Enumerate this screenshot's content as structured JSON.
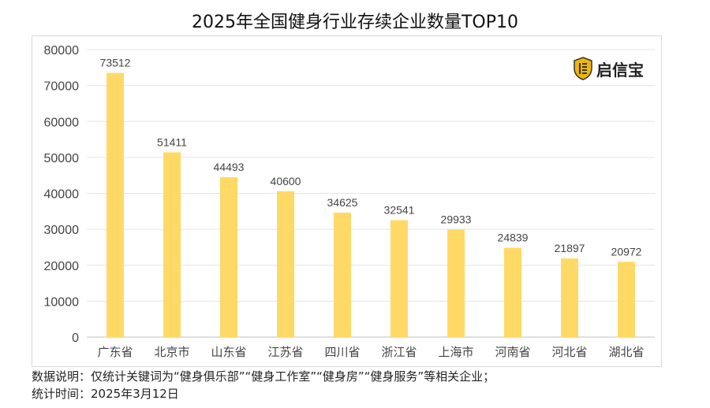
{
  "chart_data": {
    "type": "bar",
    "title": "2025年全国健身行业存续企业数量TOP10",
    "categories": [
      "广东省",
      "北京市",
      "山东省",
      "江苏省",
      "四川省",
      "浙江省",
      "上海市",
      "河南省",
      "河北省",
      "湖北省"
    ],
    "values": [
      73512,
      51411,
      44493,
      40600,
      34625,
      32541,
      29933,
      24839,
      21897,
      20972
    ],
    "ylim": [
      0,
      80000
    ],
    "yticks": [
      0,
      10000,
      20000,
      30000,
      40000,
      50000,
      60000,
      70000,
      80000
    ],
    "xlabel": "",
    "ylabel": "",
    "grid": true,
    "bar_color": "#FFD966"
  },
  "logo": {
    "text": "启信宝"
  },
  "notes": {
    "description": "数据说明：仅统计关键词为“健身俱乐部”“健身工作室”“健身房”“健身服务”等相关企业；",
    "date": "统计时间：2025年3月12日"
  }
}
